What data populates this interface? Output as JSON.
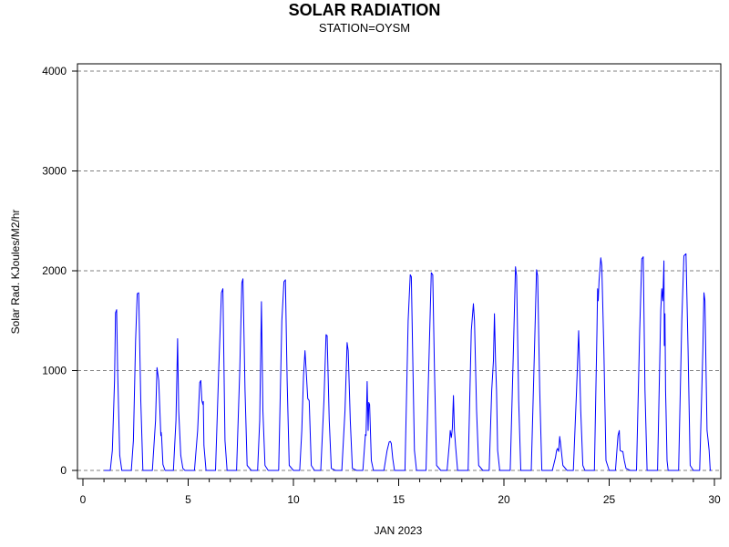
{
  "chart_data": {
    "type": "line",
    "title": "SOLAR RADIATION",
    "subtitle": "STATION=OYSM",
    "xlabel": "JAN 2023",
    "ylabel": "Solar Rad. KJoules/M2/hr",
    "xlim": [
      0,
      30
    ],
    "ylim": [
      0,
      4000
    ],
    "xticks": [
      0,
      5,
      10,
      15,
      20,
      25,
      30
    ],
    "yticks": [
      0,
      1000,
      2000,
      3000,
      4000
    ],
    "x_minor_step": 1,
    "grid": "horizontal dashed",
    "line_color": "#0000ff",
    "series": [
      {
        "x": [
          1.0,
          1.3,
          1.4,
          1.5,
          1.55,
          1.6,
          1.65,
          1.75,
          1.85,
          2.0,
          2.3,
          2.4,
          2.5,
          2.58,
          2.65,
          2.75,
          2.85,
          3.0,
          3.3,
          3.45,
          3.52,
          3.6,
          3.7,
          3.72,
          3.74,
          3.8,
          3.9,
          4.0,
          4.3,
          4.42,
          4.5,
          4.55,
          4.65,
          4.75,
          4.85,
          5.0,
          5.3,
          5.45,
          5.55,
          5.6,
          5.65,
          5.7,
          5.72,
          5.75,
          5.85,
          6.0,
          6.3,
          6.45,
          6.58,
          6.65,
          6.75,
          6.85,
          7.0,
          7.3,
          7.45,
          7.55,
          7.6,
          7.7,
          7.8,
          8.0,
          8.3,
          8.4,
          8.48,
          8.55,
          8.65,
          8.8,
          9.0,
          9.3,
          9.45,
          9.55,
          9.62,
          9.7,
          9.8,
          10.0,
          10.3,
          10.4,
          10.48,
          10.55,
          10.62,
          10.68,
          10.75,
          10.85,
          11.0,
          11.3,
          11.45,
          11.55,
          11.6,
          11.7,
          11.8,
          12.0,
          12.3,
          12.45,
          12.55,
          12.6,
          12.7,
          12.8,
          13.0,
          13.3,
          13.42,
          13.45,
          13.5,
          13.55,
          13.58,
          13.62,
          13.7,
          13.8,
          14.0,
          14.3,
          14.45,
          14.55,
          14.6,
          14.65,
          14.72,
          14.8,
          15.0,
          15.3,
          15.45,
          15.55,
          15.6,
          15.68,
          15.75,
          15.85,
          16.0,
          16.3,
          16.45,
          16.55,
          16.62,
          16.7,
          16.8,
          17.0,
          17.3,
          17.42,
          17.45,
          17.5,
          17.55,
          17.6,
          17.65,
          17.7,
          17.8,
          18.0,
          18.3,
          18.45,
          18.55,
          18.6,
          18.7,
          18.8,
          19.0,
          19.3,
          19.42,
          19.5,
          19.55,
          19.6,
          19.65,
          19.7,
          19.8,
          20.0,
          20.3,
          20.45,
          20.55,
          20.6,
          20.7,
          20.8,
          21.0,
          21.3,
          21.45,
          21.55,
          21.6,
          21.7,
          21.8,
          22.0,
          22.3,
          22.45,
          22.5,
          22.55,
          22.6,
          22.65,
          22.7,
          22.8,
          23.0,
          23.3,
          23.45,
          23.55,
          23.6,
          23.65,
          23.75,
          23.85,
          24.0,
          24.3,
          24.42,
          24.45,
          24.48,
          24.52,
          24.6,
          24.65,
          24.75,
          24.85,
          25.0,
          25.3,
          25.42,
          25.48,
          25.52,
          25.6,
          25.65,
          25.72,
          25.8,
          26.0,
          26.3,
          26.45,
          26.55,
          26.62,
          26.7,
          26.8,
          27.0,
          27.3,
          27.45,
          27.5,
          27.55,
          27.6,
          27.62,
          27.65,
          27.68,
          27.7,
          27.75,
          27.8,
          27.9,
          28.0,
          28.3,
          28.45,
          28.55,
          28.65,
          28.75,
          28.85,
          29.0,
          29.3,
          29.45,
          29.5,
          29.55,
          29.6,
          29.65,
          29.7,
          29.75,
          29.8,
          29.85
        ],
        "y": [
          0,
          0,
          200,
          900,
          1580,
          1610,
          1000,
          150,
          0,
          0,
          0,
          300,
          1300,
          1770,
          1780,
          700,
          0,
          0,
          0,
          500,
          1030,
          900,
          350,
          380,
          330,
          60,
          0,
          0,
          0,
          500,
          1320,
          600,
          150,
          20,
          0,
          0,
          0,
          400,
          880,
          900,
          700,
          660,
          690,
          250,
          0,
          0,
          0,
          1000,
          1780,
          1820,
          300,
          0,
          0,
          0,
          1000,
          1880,
          1920,
          800,
          50,
          0,
          0,
          500,
          1690,
          600,
          50,
          0,
          0,
          0,
          1500,
          1890,
          1910,
          900,
          50,
          0,
          0,
          400,
          950,
          1200,
          950,
          720,
          700,
          50,
          0,
          0,
          700,
          1360,
          1350,
          500,
          20,
          0,
          0,
          600,
          1280,
          1200,
          500,
          20,
          0,
          0,
          360,
          350,
          890,
          400,
          680,
          660,
          100,
          0,
          0,
          0,
          200,
          285,
          290,
          270,
          120,
          0,
          0,
          0,
          1500,
          1960,
          1940,
          1000,
          200,
          0,
          0,
          0,
          1200,
          1980,
          1960,
          1000,
          50,
          0,
          0,
          300,
          400,
          330,
          420,
          750,
          400,
          250,
          0,
          0,
          0,
          1400,
          1670,
          1500,
          600,
          50,
          0,
          0,
          800,
          1100,
          1570,
          1100,
          800,
          200,
          0,
          0,
          0,
          1200,
          2040,
          1950,
          700,
          0,
          0,
          0,
          1200,
          2010,
          1950,
          800,
          0,
          0,
          0,
          130,
          200,
          220,
          190,
          340,
          250,
          50,
          0,
          0,
          800,
          1400,
          1000,
          600,
          50,
          0,
          0,
          0,
          1400,
          1820,
          1700,
          1900,
          2130,
          2050,
          1200,
          100,
          0,
          0,
          350,
          400,
          200,
          190,
          190,
          100,
          20,
          0,
          0,
          1400,
          2120,
          2140,
          800,
          0,
          0,
          0,
          1600,
          1820,
          1700,
          2100,
          1250,
          1570,
          800,
          600,
          100,
          0,
          0,
          0,
          0,
          1500,
          2150,
          2170,
          1200,
          50,
          0,
          0,
          1200,
          1780,
          1700,
          1000,
          400,
          300,
          200,
          0,
          0
        ]
      }
    ]
  }
}
